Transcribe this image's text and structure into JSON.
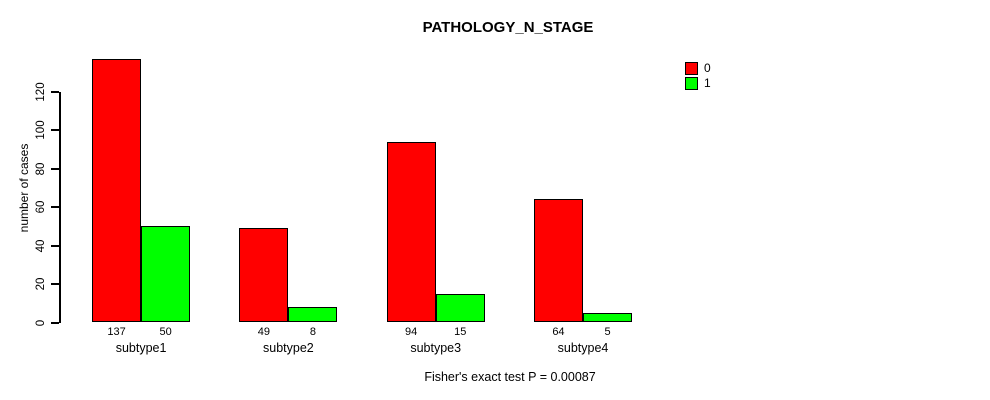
{
  "title": "PATHOLOGY_N_STAGE",
  "ylabel": "number of cases",
  "caption": "Fisher's exact test P = 0.00087",
  "colors": {
    "series0": "#FF0000",
    "series1": "#00FF00",
    "axis": "#000000",
    "background": "#FFFFFF"
  },
  "legend": {
    "items": [
      {
        "label": "0",
        "color": "#FF0000"
      },
      {
        "label": "1",
        "color": "#00FF00"
      }
    ]
  },
  "chart_data": {
    "type": "bar",
    "title": "PATHOLOGY_N_STAGE",
    "xlabel": "",
    "ylabel": "number of cases",
    "categories": [
      "subtype1",
      "subtype2",
      "subtype3",
      "subtype4"
    ],
    "series": [
      {
        "name": "0",
        "color": "#FF0000",
        "values": [
          137,
          49,
          94,
          64
        ]
      },
      {
        "name": "1",
        "color": "#00FF00",
        "values": [
          50,
          8,
          15,
          5
        ]
      }
    ],
    "yticks": [
      0,
      20,
      40,
      60,
      80,
      100,
      120
    ],
    "ylim": [
      0,
      140
    ],
    "grid": false,
    "legend_position": "top-right",
    "bar_borders": true,
    "annotation": "Fisher's exact test P = 0.00087"
  }
}
